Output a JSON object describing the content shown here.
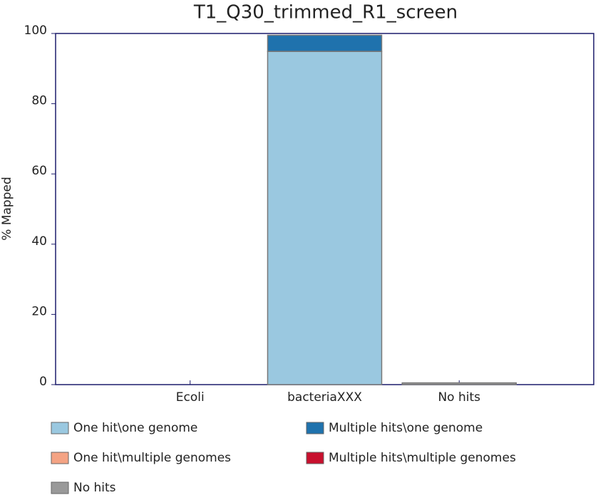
{
  "chart_data": {
    "type": "stacked-bar",
    "title": "T1_Q30_trimmed_R1_screen",
    "y_label": "% Mapped",
    "categories": [
      "Ecoli",
      "bacteriaXXX",
      "No hits"
    ],
    "series": [
      {
        "name": "One hit\\one genome",
        "color": "#9ac8e0",
        "values": [
          0,
          94.9,
          0
        ]
      },
      {
        "name": "Multiple hits\\one genome",
        "color": "#1f72ad",
        "values": [
          0,
          4.6,
          0
        ]
      },
      {
        "name": "One hit\\multiple genomes",
        "color": "#f4a384",
        "values": [
          0,
          0,
          0
        ]
      },
      {
        "name": "Multiple hits\\multiple genomes",
        "color": "#c8102e",
        "values": [
          0,
          0,
          0
        ]
      },
      {
        "name": "No hits",
        "color": "#999999",
        "values": [
          0,
          0,
          0.5
        ]
      }
    ],
    "ylim": [
      0,
      100
    ],
    "yticks": [
      0,
      20,
      40,
      60,
      80,
      100
    ]
  }
}
